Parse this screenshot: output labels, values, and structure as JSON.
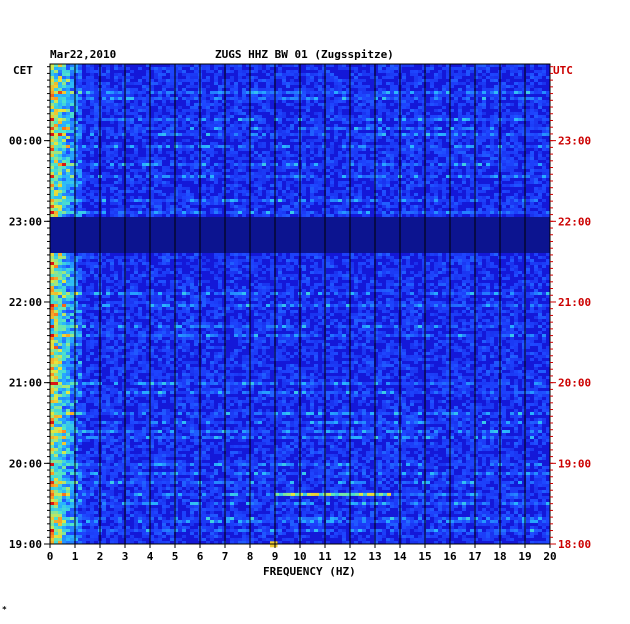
{
  "header": {
    "date": "Mar22,2010",
    "station": "ZUGS HHZ BW 01 (Zugsspitze)",
    "left_timezone": "CET",
    "right_timezone": "UTC"
  },
  "footer_mark": "*",
  "colors": {
    "background_blue": "#1418d8",
    "gap_band": "#0c1490",
    "grid": "#000000",
    "utc_labels": "#cc0000",
    "cet_labels": "#000000"
  },
  "chart_data": {
    "type": "heatmap",
    "title": "ZUGS HHZ BW 01 (Zugsspitze)",
    "subtitle": "Mar22,2010",
    "xlabel": "FREQUENCY (HZ)",
    "xlim": [
      0,
      20
    ],
    "x_ticks": [
      "0",
      "1",
      "2",
      "3",
      "4",
      "5",
      "6",
      "7",
      "8",
      "9",
      "10",
      "11",
      "12",
      "13",
      "14",
      "15",
      "16",
      "17",
      "18",
      "19",
      "20"
    ],
    "y_left_label": "CET",
    "y_right_label": "UTC",
    "y_left_ticks": [
      "19:00",
      "20:00",
      "21:00",
      "22:00",
      "23:00",
      "00:00"
    ],
    "y_right_ticks": [
      "18:00",
      "19:00",
      "20:00",
      "21:00",
      "22:00",
      "23:00"
    ],
    "time_range_cet_hours": [
      19.0,
      0.95
    ],
    "grid": true,
    "features": [
      {
        "kind": "low-frequency energy",
        "freq_hz": [
          0,
          1.2
        ],
        "intensity": "high"
      },
      {
        "kind": "quiet gap",
        "cet_from": "23:05",
        "cet_to": "22:38"
      },
      {
        "kind": "broadband burst",
        "cet": "19:38",
        "freq_hz": [
          9,
          13.5
        ]
      },
      {
        "kind": "narrow-band event",
        "cet": "19:02",
        "freq_hz": [
          8.8,
          9.1
        ]
      }
    ]
  }
}
